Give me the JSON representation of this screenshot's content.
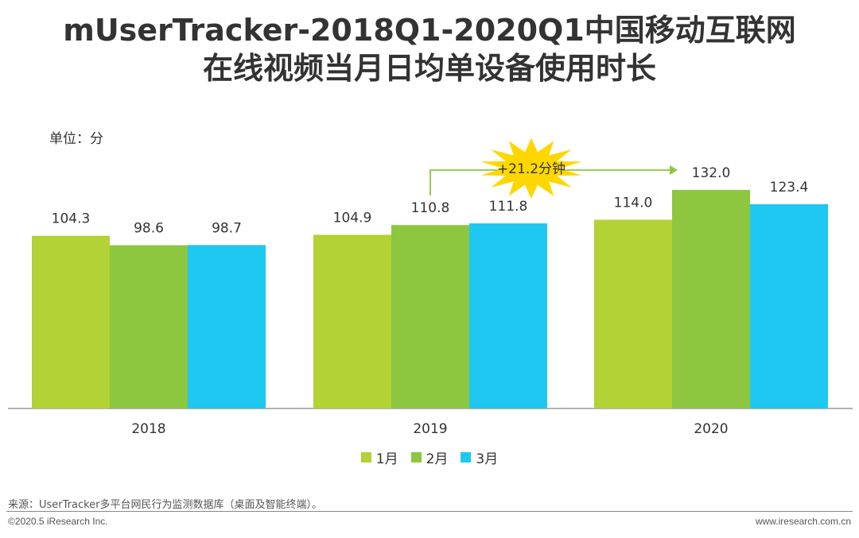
{
  "title_line1": "mUserTracker-2018Q1-2020Q1中国移动互联网",
  "title_line2": "在线视频当月日均单设备使用时长",
  "unit_label": "单位：分",
  "annotation": "+21.2分钟",
  "source": "来源：UserTracker多平台网民行为监测数据库（桌面及智能终端）。",
  "copyright": "©2020.5 iResearch Inc.",
  "website": "www.iresearch.com.cn",
  "colors": {
    "s1": "#B2D235",
    "s2": "#8DC63F",
    "s3": "#1EC8F0",
    "burst": "#FFD700",
    "arrow": "#8DC63F"
  },
  "chart_data": {
    "type": "bar",
    "categories": [
      "2018",
      "2019",
      "2020"
    ],
    "series": [
      {
        "name": "1月",
        "values": [
          104.3,
          104.9,
          114.0
        ]
      },
      {
        "name": "2月",
        "values": [
          98.6,
          110.8,
          132.0
        ]
      },
      {
        "name": "3月",
        "values": [
          98.7,
          111.8,
          123.4
        ]
      }
    ],
    "value_labels": [
      [
        "104.3",
        "104.9",
        "114.0"
      ],
      [
        "98.6",
        "110.8",
        "132.0"
      ],
      [
        "98.7",
        "111.8",
        "123.4"
      ]
    ],
    "ylim": [
      0,
      132
    ],
    "legend": "bottom"
  }
}
